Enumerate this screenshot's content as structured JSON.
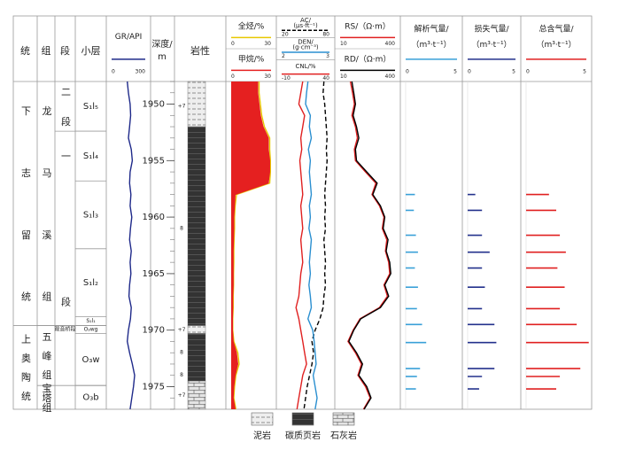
{
  "chart_data": {
    "type": "well-log",
    "ylim": [
      1948,
      1977
    ],
    "yticks": [
      1950,
      1955,
      1960,
      1965,
      1970,
      1975
    ],
    "depth_title": [
      "深度/",
      "m"
    ],
    "lithology_title": "岩性",
    "depth": [
      1948,
      1949,
      1950,
      1951,
      1952,
      1953,
      1954,
      1955,
      1956,
      1957,
      1958,
      1959,
      1960,
      1961,
      1962,
      1963,
      1964,
      1965,
      1966,
      1967,
      1968,
      1969,
      1970,
      1971,
      1972,
      1973,
      1974,
      1975,
      1976,
      1977
    ],
    "strat": [
      {
        "header": "统",
        "cells": [
          {
            "text": "下志留统",
            "top": 1948,
            "bottom": 1969.6
          },
          {
            "text": "上奥陶统",
            "top": 1969.6,
            "bottom": 1977
          }
        ]
      },
      {
        "header": "组",
        "cells": [
          {
            "text": "龙马溪组",
            "top": 1948,
            "bottom": 1969.6
          },
          {
            "text": "五峰组",
            "top": 1969.6,
            "bottom": 1974.9
          },
          {
            "text": "宝塔组",
            "top": 1974.9,
            "bottom": 1977
          }
        ]
      },
      {
        "header": "段",
        "cells": [
          {
            "text": "二段",
            "top": 1948,
            "bottom": 1952.4
          },
          {
            "text": "一段",
            "top": 1952.4,
            "bottom": 1969.6
          },
          {
            "text": "观音桥段",
            "top": 1969.6,
            "bottom": 1970.3
          }
        ]
      },
      {
        "header": "小层",
        "cells": [
          {
            "text": "S₁l₅",
            "top": 1948,
            "bottom": 1952.4
          },
          {
            "text": "S₁l₄",
            "top": 1952.4,
            "bottom": 1956.8
          },
          {
            "text": "S₁l₃",
            "top": 1956.8,
            "bottom": 1962.8
          },
          {
            "text": "S₁l₂",
            "top": 1962.8,
            "bottom": 1968.8
          },
          {
            "text": "S₁l₁",
            "top": 1968.8,
            "bottom": 1969.6
          },
          {
            "text": "O₃wg",
            "top": 1969.6,
            "bottom": 1970.3
          },
          {
            "text": "O₃w",
            "top": 1970.3,
            "bottom": 1974.9
          },
          {
            "text": "O₃b",
            "top": 1974.9,
            "bottom": 1977
          }
        ]
      }
    ],
    "legend": [
      "泥岩",
      "碳质页岩",
      "石灰岩"
    ],
    "lithology": [
      {
        "top": 1948,
        "bottom": 1952,
        "rock": "泥岩"
      },
      {
        "top": 1952,
        "bottom": 1969.6,
        "rock": "碳质页岩"
      },
      {
        "top": 1969.6,
        "bottom": 1970.3,
        "rock": "泥岩"
      },
      {
        "top": 1970.3,
        "bottom": 1974.5,
        "rock": "碳质页岩"
      },
      {
        "top": 1974.5,
        "bottom": 1977,
        "rock": "石灰岩"
      }
    ],
    "lithology_marks": [
      {
        "depth": 1950.2,
        "label": "+7"
      },
      {
        "depth": 1961,
        "label": "8"
      },
      {
        "depth": 1970,
        "label": "+7"
      },
      {
        "depth": 1972,
        "label": "8"
      },
      {
        "depth": 1974,
        "label": "8"
      },
      {
        "depth": 1975.8,
        "label": "+7"
      }
    ],
    "gas_depth": [
      1958.0,
      1959.4,
      1961.6,
      1963.1,
      1964.5,
      1966.2,
      1968.1,
      1969.5,
      1971.1,
      1973.4,
      1974.1,
      1975.2
    ],
    "tracks": [
      {
        "type": "line",
        "curves": [
          {
            "name": "GR/API",
            "color": "#1f2a8a",
            "xlim": [
              0,
              300
            ],
            "xticks": [
              0,
              300
            ],
            "values": [
              140,
              150,
              165,
              170,
              160,
              150,
              175,
              185,
              165,
              160,
              172,
              165,
              180,
              168,
              160,
              175,
              165,
              172,
              160,
              155,
              175,
              168,
              150,
              140,
              160,
              185,
              205,
              195,
              180,
              165
            ]
          }
        ]
      },
      {
        "type": "line",
        "curves": [
          {
            "name": "全烃/%",
            "color": "#e8c800",
            "xlim": [
              0,
              30
            ],
            "xticks": [
              0,
              30
            ],
            "values": [
              21,
              21,
              22,
              23,
              25,
              29,
              29,
              29.5,
              29.5,
              29,
              4,
              3,
              2.5,
              2.5,
              2.2,
              2,
              2,
              1.8,
              1.8,
              1.5,
              1.5,
              1.2,
              1.2,
              2,
              5,
              6,
              3.5,
              2.5,
              2,
              3.5
            ]
          },
          {
            "name": "甲烷/%",
            "color": "#e52020",
            "fill": true,
            "xlim": [
              0,
              30
            ],
            "xticks": [
              0,
              30
            ],
            "values": [
              20,
              20,
              21,
              22,
              24,
              28,
              28,
              29,
              29,
              28,
              3,
              2.5,
              2,
              2,
              1.8,
              1.5,
              1.5,
              1.5,
              1.5,
              1.2,
              1.2,
              1,
              1,
              1.5,
              4,
              5,
              3,
              2,
              1.5,
              3
            ]
          }
        ]
      },
      {
        "type": "line",
        "curves": [
          {
            "name": "AC/",
            "unit": "(μs·ft⁻¹)",
            "color": "#000000",
            "dash": true,
            "xlim": [
              20,
              80
            ],
            "xticks": [
              20,
              80
            ],
            "values": [
              73,
              72,
              74,
              75,
              76,
              77,
              76,
              77,
              76,
              75,
              74,
              75,
              74,
              75,
              73,
              74,
              75,
              74,
              75,
              73,
              72,
              68,
              62,
              58,
              60,
              58,
              55,
              52,
              50,
              48
            ]
          },
          {
            "name": "DEN/",
            "unit": "(g·cm⁻³)",
            "color": "#2a8fd0",
            "xlim": [
              2,
              3
            ],
            "xticks": [
              2,
              3
            ],
            "values": [
              2.55,
              2.52,
              2.5,
              2.6,
              2.58,
              2.62,
              2.56,
              2.6,
              2.58,
              2.6,
              2.62,
              2.58,
              2.6,
              2.57,
              2.62,
              2.6,
              2.58,
              2.6,
              2.57,
              2.6,
              2.62,
              2.55,
              2.65,
              2.68,
              2.7,
              2.72,
              2.66,
              2.7,
              2.74,
              2.7
            ]
          },
          {
            "name": "CNL/%",
            "color": "#e02020",
            "xlim": [
              -10,
              40
            ],
            "xticks": [
              -10,
              40
            ],
            "values": [
              12,
              10,
              8,
              14,
              12,
              10,
              11,
              9,
              10,
              11,
              12,
              10,
              11,
              12,
              10,
              11,
              12,
              10,
              9,
              8,
              5,
              8,
              10,
              12,
              14,
              16,
              12,
              10,
              8,
              6
            ]
          }
        ]
      },
      {
        "type": "line",
        "curves": [
          {
            "name": "RS/（Ω·m）",
            "color": "#e02020",
            "log": true,
            "xlim": [
              10,
              400
            ],
            "xticks": [
              10,
              400
            ],
            "values": [
              20,
              23,
              26,
              22,
              28,
              32,
              26,
              28,
              55,
              110,
              85,
              140,
              190,
              170,
              230,
              210,
              260,
              280,
              190,
              240,
              140,
              38,
              24,
              17,
              28,
              42,
              33,
              55,
              75,
              48
            ]
          },
          {
            "name": "RD/（Ω·m）",
            "color": "#000000",
            "log": true,
            "xlim": [
              10,
              400
            ],
            "xticks": [
              10,
              400
            ],
            "values": [
              22,
              25,
              28,
              24,
              30,
              35,
              28,
              30,
              60,
              120,
              90,
              150,
              200,
              180,
              250,
              220,
              280,
              300,
              200,
              260,
              150,
              40,
              25,
              18,
              30,
              45,
              35,
              60,
              80,
              50
            ]
          }
        ]
      },
      {
        "type": "bar",
        "name": "解析气量/",
        "unit": "（m³·t⁻¹）",
        "color": "#39a0d8",
        "xlim": [
          0,
          5
        ],
        "xticks": [
          0,
          5
        ],
        "values": [
          0.9,
          0.8,
          1.0,
          1.2,
          0.9,
          1.2,
          1.1,
          1.6,
          2.0,
          1.4,
          1.1,
          1.0
        ]
      },
      {
        "type": "bar",
        "name": "损失气量/",
        "unit": "（m³·t⁻¹）",
        "color": "#23318c",
        "xlim": [
          0,
          5
        ],
        "xticks": [
          0,
          5
        ],
        "values": [
          0.8,
          1.5,
          1.5,
          2.3,
          1.5,
          1.8,
          1.5,
          2.8,
          3.0,
          2.8,
          1.5,
          1.2
        ]
      },
      {
        "type": "bar",
        "name": "总含气量/",
        "unit": "（m³·t⁻¹）",
        "color": "#e02020",
        "xlim": [
          0,
          5
        ],
        "xticks": [
          0,
          5
        ],
        "values": [
          1.9,
          2.5,
          2.8,
          3.3,
          2.6,
          3.2,
          2.8,
          4.2,
          5.2,
          4.5,
          2.8,
          2.5
        ]
      }
    ]
  }
}
